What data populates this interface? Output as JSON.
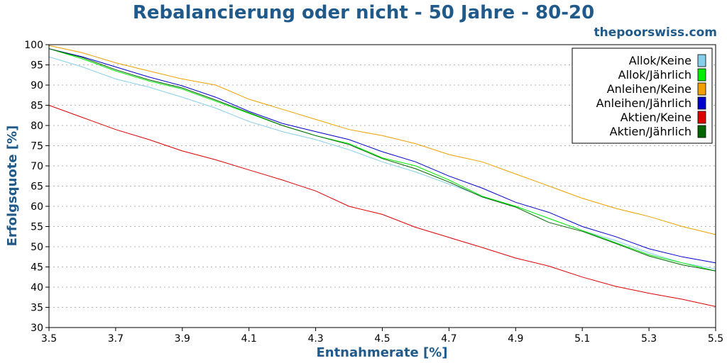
{
  "chart_data": {
    "type": "line",
    "title": "Rebalancierung oder nicht - 50 Jahre - 80-20",
    "watermark": "thepoorswiss.com",
    "xlabel": "Entnahmerate [%]",
    "ylabel": "Erfolgsquote [%]",
    "xlim": [
      3.5,
      5.5
    ],
    "ylim": [
      30,
      100
    ],
    "xticks": [
      "3.5",
      "3.7",
      "3.9",
      "4.1",
      "4.3",
      "4.5",
      "4.7",
      "4.9",
      "5.1",
      "5.3",
      "5.5"
    ],
    "yticks": [
      "30",
      "35",
      "40",
      "45",
      "50",
      "55",
      "60",
      "65",
      "70",
      "75",
      "80",
      "85",
      "90",
      "95",
      "100"
    ],
    "grid": true,
    "legend_position": "top-right",
    "x": [
      3.5,
      3.6,
      3.7,
      3.8,
      3.9,
      4.0,
      4.1,
      4.2,
      4.3,
      4.4,
      4.5,
      4.6,
      4.7,
      4.8,
      4.9,
      5.0,
      5.1,
      5.2,
      5.3,
      5.4,
      5.5
    ],
    "series": [
      {
        "name": "Allok/Keine",
        "color": "#87ceeb",
        "values": [
          97.0,
          94.5,
          91.5,
          89.5,
          87.0,
          84.3,
          81.0,
          78.5,
          76.5,
          74.0,
          71.0,
          68.5,
          65.5,
          62.5,
          60.0,
          57.0,
          54.0,
          51.5,
          48.5,
          46.0,
          44.5
        ]
      },
      {
        "name": "Allok/Jährlich",
        "color": "#00ee00",
        "values": [
          99.0,
          96.5,
          93.5,
          91.0,
          89.0,
          86.0,
          83.0,
          80.0,
          77.5,
          75.5,
          72.0,
          70.0,
          66.5,
          62.5,
          60.0,
          57.0,
          54.0,
          51.0,
          48.0,
          46.0,
          44.0
        ]
      },
      {
        "name": "Anleihen/Keine",
        "color": "#f0a000",
        "values": [
          99.8,
          98.0,
          95.5,
          93.5,
          91.5,
          90.0,
          86.5,
          84.0,
          81.5,
          79.0,
          77.5,
          75.5,
          72.8,
          71.0,
          68.0,
          65.0,
          62.0,
          59.5,
          57.5,
          55.0,
          53.0
        ]
      },
      {
        "name": "Anleihen/Jährlich",
        "color": "#0000cc",
        "values": [
          99.0,
          97.0,
          94.5,
          92.0,
          89.8,
          87.0,
          83.5,
          80.5,
          78.5,
          76.5,
          73.5,
          71.0,
          67.5,
          64.5,
          61.0,
          58.5,
          55.0,
          52.5,
          49.5,
          47.5,
          46.0
        ]
      },
      {
        "name": "Aktien/Keine",
        "color": "#dd0000",
        "values": [
          85.0,
          82.0,
          79.0,
          76.5,
          73.7,
          71.5,
          69.0,
          66.5,
          63.8,
          60.0,
          58.0,
          54.8,
          52.3,
          49.8,
          47.2,
          45.2,
          42.5,
          40.2,
          38.5,
          37.0,
          35.2
        ]
      },
      {
        "name": "Aktien/Jährlich",
        "color": "#006400",
        "values": [
          99.0,
          96.8,
          93.8,
          91.3,
          89.3,
          86.3,
          83.2,
          80.0,
          77.5,
          75.3,
          71.8,
          69.3,
          66.0,
          62.3,
          59.8,
          56.0,
          53.8,
          50.8,
          47.7,
          45.5,
          44.0
        ]
      }
    ]
  }
}
